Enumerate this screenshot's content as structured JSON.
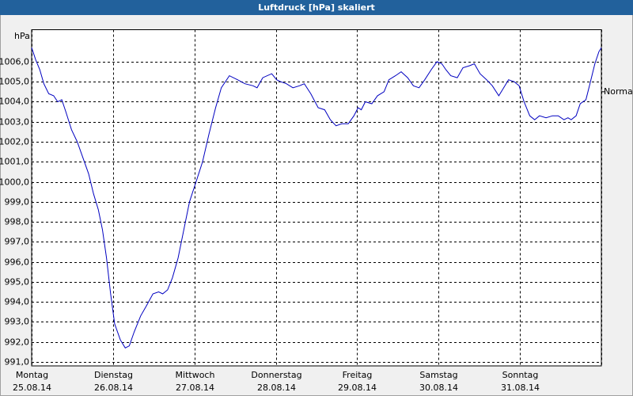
{
  "chart_data": {
    "type": "line",
    "title": "Luftdruck [hPa] skaliert",
    "y_unit": "hPa",
    "xlim": [
      0,
      7
    ],
    "xticks": [
      {
        "value": 0,
        "label": "Montag",
        "date": "25.08.14"
      },
      {
        "value": 1,
        "label": "Dienstag",
        "date": "26.08.14"
      },
      {
        "value": 2,
        "label": "Mittwoch",
        "date": "27.08.14"
      },
      {
        "value": 3,
        "label": "Donnerstag",
        "date": "28.08.14"
      },
      {
        "value": 4,
        "label": "Freitag",
        "date": "29.08.14"
      },
      {
        "value": 5,
        "label": "Samstag",
        "date": "30.08.14"
      },
      {
        "value": 6,
        "label": "Sonntag",
        "date": "31.08.14"
      },
      {
        "value": 7,
        "label": null,
        "date": null
      }
    ],
    "ylim": [
      990.8,
      1007.6
    ],
    "yticks": [
      {
        "value": 991,
        "label": "991,0"
      },
      {
        "value": 992,
        "label": "992,0"
      },
      {
        "value": 993,
        "label": "993,0"
      },
      {
        "value": 994,
        "label": "994,0"
      },
      {
        "value": 995,
        "label": "995,0"
      },
      {
        "value": 996,
        "label": "996,0"
      },
      {
        "value": 997,
        "label": "997,0"
      },
      {
        "value": 998,
        "label": "998,0"
      },
      {
        "value": 999,
        "label": "999,0"
      },
      {
        "value": 1000,
        "label": "1000,0"
      },
      {
        "value": 1001,
        "label": "1001,0"
      },
      {
        "value": 1002,
        "label": "1002,0"
      },
      {
        "value": 1003,
        "label": "1003,0"
      },
      {
        "value": 1004,
        "label": "1004,0"
      },
      {
        "value": 1005,
        "label": "1005,0"
      },
      {
        "value": 1006,
        "label": "1006,0"
      }
    ],
    "grid": true,
    "reference": {
      "label": "Normal",
      "value": 1004.5
    },
    "series": [
      {
        "color": "#0000c0",
        "x": [
          0,
          0.05,
          0.1,
          0.15,
          0.21,
          0.27,
          0.32,
          0.37,
          0.42,
          0.49,
          0.56,
          0.63,
          0.7,
          0.76,
          0.82,
          0.87,
          0.92,
          0.97,
          1.02,
          1.09,
          1.15,
          1.2,
          1.26,
          1.34,
          1.41,
          1.49,
          1.56,
          1.61,
          1.67,
          1.73,
          1.8,
          1.87,
          1.94,
          2.02,
          2.1,
          2.18,
          2.26,
          2.33,
          2.43,
          2.53,
          2.62,
          2.72,
          2.77,
          2.84,
          2.95,
          3.01,
          3.06,
          3.13,
          3.21,
          3.29,
          3.35,
          3.43,
          3.52,
          3.6,
          3.67,
          3.74,
          3.81,
          3.89,
          3.96,
          4.01,
          4.05,
          4.1,
          4.18,
          4.25,
          4.33,
          4.39,
          4.47,
          4.54,
          4.62,
          4.69,
          4.76,
          4.83,
          4.91,
          4.98,
          5.04,
          5.09,
          5.15,
          5.23,
          5.3,
          5.38,
          5.44,
          5.51,
          5.59,
          5.66,
          5.74,
          5.8,
          5.86,
          5.93,
          5.99,
          6.05,
          6.12,
          6.18,
          6.24,
          6.32,
          6.4,
          6.47,
          6.54,
          6.59,
          6.63,
          6.69,
          6.74,
          6.81,
          6.86,
          6.92,
          6.97,
          7.0
        ],
        "values": [
          1006.7,
          1006.1,
          1005.6,
          1004.9,
          1004.4,
          1004.3,
          1004.0,
          1004.1,
          1003.5,
          1002.6,
          1002.0,
          1001.2,
          1000.4,
          999.4,
          998.6,
          997.6,
          996.2,
          994.4,
          992.9,
          992.1,
          991.7,
          991.8,
          992.5,
          993.3,
          993.8,
          994.4,
          994.5,
          994.4,
          994.6,
          995.2,
          996.2,
          997.6,
          999.0,
          1000.0,
          1001.0,
          1002.4,
          1003.7,
          1004.7,
          1005.3,
          1005.1,
          1004.9,
          1004.8,
          1004.7,
          1005.2,
          1005.4,
          1005.1,
          1005.0,
          1004.9,
          1004.7,
          1004.8,
          1004.9,
          1004.4,
          1003.7,
          1003.6,
          1003.1,
          1002.8,
          1002.9,
          1002.9,
          1003.3,
          1003.7,
          1003.6,
          1004.0,
          1003.9,
          1004.3,
          1004.5,
          1005.1,
          1005.3,
          1005.5,
          1005.2,
          1004.8,
          1004.7,
          1005.1,
          1005.6,
          1006.0,
          1005.9,
          1005.6,
          1005.3,
          1005.2,
          1005.7,
          1005.8,
          1005.9,
          1005.4,
          1005.1,
          1004.8,
          1004.3,
          1004.7,
          1005.1,
          1005.0,
          1004.8,
          1004.0,
          1003.3,
          1003.1,
          1003.3,
          1003.2,
          1003.3,
          1003.3,
          1003.1,
          1003.2,
          1003.1,
          1003.3,
          1003.9,
          1004.1,
          1004.9,
          1005.9,
          1006.5,
          1006.7
        ]
      }
    ]
  }
}
